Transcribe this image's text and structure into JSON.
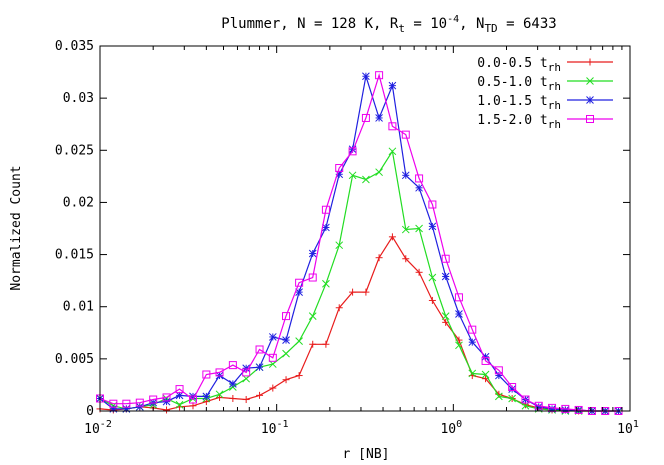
{
  "chart_data": {
    "type": "line",
    "title": {
      "prefix": "Plummer, N = 128 K, R",
      "r_sub": "t",
      "r_eq": " = 10",
      "r_sup": "-4",
      "n_sep": ", N",
      "n_sub": "TD",
      "n_eq": " = 6433"
    },
    "xlabel": "r [NB]",
    "ylabel": "Normalized Count",
    "xscale": "log",
    "xlim": [
      0.01,
      10
    ],
    "ylim": [
      0,
      0.035
    ],
    "x_ticks": [
      {
        "value": 0.01,
        "base": "10",
        "exp": "-2"
      },
      {
        "value": 0.1,
        "base": "10",
        "exp": "-1"
      },
      {
        "value": 1,
        "base": "10",
        "exp": "0"
      },
      {
        "value": 10,
        "base": "10",
        "exp": "1"
      }
    ],
    "y_ticks": [
      {
        "value": 0,
        "label": "0"
      },
      {
        "value": 0.005,
        "label": "0.005"
      },
      {
        "value": 0.01,
        "label": "0.01"
      },
      {
        "value": 0.015,
        "label": "0.015"
      },
      {
        "value": 0.02,
        "label": "0.02"
      },
      {
        "value": 0.025,
        "label": "0.025"
      },
      {
        "value": 0.03,
        "label": "0.03"
      },
      {
        "value": 0.035,
        "label": "0.035"
      }
    ],
    "grid": false,
    "legend_position": "top-right",
    "x": [
      0.01,
      0.0119,
      0.0141,
      0.0168,
      0.02,
      0.0238,
      0.0282,
      0.0336,
      0.04,
      0.0475,
      0.0565,
      0.0672,
      0.08,
      0.0951,
      0.113,
      0.134,
      0.16,
      0.19,
      0.226,
      0.269,
      0.32,
      0.38,
      0.452,
      0.538,
      0.64,
      0.761,
      0.905,
      1.076,
      1.28,
      1.522,
      1.81,
      2.152,
      2.56,
      3.044,
      3.62,
      4.305,
      5.12,
      6.089,
      7.241,
      8.611
    ],
    "series": [
      {
        "name_main": "0.0-0.5 t",
        "name_sub": "rh",
        "color": "#e81c1c",
        "marker": "plus",
        "values": [
          0.0002,
          0.0001,
          0.0002,
          0.0004,
          0.0003,
          0.0001,
          0.0004,
          0.0005,
          0.0009,
          0.0013,
          0.0012,
          0.0011,
          0.0015,
          0.0022,
          0.003,
          0.0034,
          0.0064,
          0.0064,
          0.0099,
          0.0114,
          0.0114,
          0.0147,
          0.0167,
          0.0146,
          0.0133,
          0.0106,
          0.0085,
          0.0068,
          0.0034,
          0.0031,
          0.0016,
          0.0012,
          0.0006,
          0.0003,
          0.0001,
          0.0001,
          0.0,
          0.0,
          0.0,
          0.0
        ]
      },
      {
        "name_main": "0.5-1.0 t",
        "name_sub": "rh",
        "color": "#22dd22",
        "marker": "cross",
        "values": [
          0.0012,
          0.0005,
          0.0002,
          0.0004,
          0.0006,
          0.0012,
          0.0006,
          0.0012,
          0.0012,
          0.0016,
          0.0023,
          0.0031,
          0.0042,
          0.0045,
          0.0055,
          0.0067,
          0.0091,
          0.0122,
          0.0159,
          0.0226,
          0.0222,
          0.0229,
          0.0249,
          0.0174,
          0.0175,
          0.0128,
          0.0091,
          0.0063,
          0.0036,
          0.0035,
          0.0014,
          0.0012,
          0.0005,
          0.0002,
          0.0001,
          0.0,
          0.0,
          0.0,
          0.0,
          0.0
        ]
      },
      {
        "name_main": "1.0-1.5 t",
        "name_sub": "rh",
        "color": "#2020e0",
        "marker": "star",
        "values": [
          0.0012,
          0.0002,
          0.0002,
          0.0004,
          0.0008,
          0.0009,
          0.0015,
          0.0014,
          0.0014,
          0.0034,
          0.0026,
          0.0041,
          0.0042,
          0.0071,
          0.0068,
          0.0114,
          0.0151,
          0.0176,
          0.0227,
          0.0251,
          0.0321,
          0.0281,
          0.0312,
          0.0226,
          0.0214,
          0.0177,
          0.0129,
          0.0093,
          0.0066,
          0.0052,
          0.0034,
          0.0021,
          0.0011,
          0.0004,
          0.0002,
          0.0001,
          0.0001,
          0.0,
          0.0,
          0.0
        ]
      },
      {
        "name_main": "1.5-2.0 t",
        "name_sub": "rh",
        "color": "#ee00ee",
        "marker": "square",
        "values": [
          0.0012,
          0.0007,
          0.0007,
          0.0008,
          0.0011,
          0.0013,
          0.0021,
          0.0011,
          0.0035,
          0.0037,
          0.0044,
          0.0037,
          0.0059,
          0.0051,
          0.0091,
          0.0123,
          0.0128,
          0.0193,
          0.0233,
          0.0249,
          0.0281,
          0.0322,
          0.0273,
          0.0265,
          0.0223,
          0.0198,
          0.0146,
          0.0109,
          0.0078,
          0.0048,
          0.0039,
          0.0023,
          0.0011,
          0.0005,
          0.0003,
          0.0002,
          0.0001,
          0.0,
          0.0,
          0.0
        ]
      }
    ]
  }
}
